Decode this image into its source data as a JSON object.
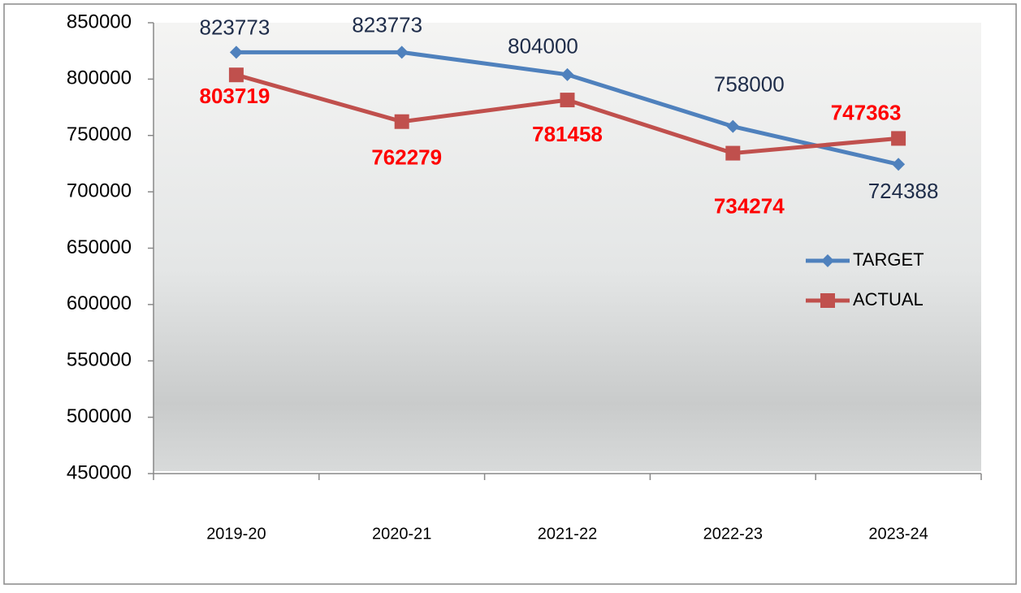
{
  "chart_data": {
    "type": "line",
    "categories": [
      "2019-20",
      "2020-21",
      "2021-22",
      "2022-23",
      "2023-24"
    ],
    "series": [
      {
        "name": "TARGET",
        "color": "#4f81bd",
        "marker": "diamond",
        "label_color": "#1f2d4a",
        "label_bold": false,
        "values": [
          823773,
          823773,
          804000,
          758000,
          724388
        ]
      },
      {
        "name": "ACTUAL",
        "color": "#c0504d",
        "marker": "square",
        "label_color": "#ff0000",
        "label_bold": true,
        "values": [
          803719,
          762279,
          781458,
          734274,
          747363
        ]
      }
    ],
    "ylim": [
      450000,
      850000
    ],
    "yticks": [
      450000,
      500000,
      550000,
      600000,
      650000,
      700000,
      750000,
      800000,
      850000
    ],
    "grid": false,
    "legend": "right"
  }
}
